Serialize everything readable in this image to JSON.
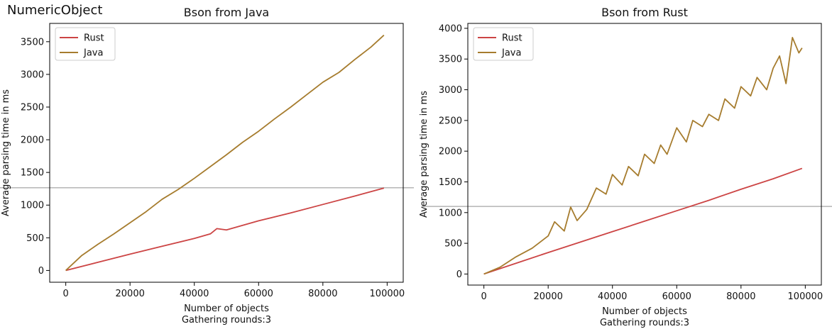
{
  "figure": {
    "suptitle": "NumericObject"
  },
  "chart_data": [
    {
      "type": "line",
      "title": "Bson from Java",
      "xlabel": "Number of objects\nGathering rounds:3",
      "ylabel": "Average parsing time in ms",
      "xlim": [
        -5000,
        105000
      ],
      "ylim": [
        -180,
        3780
      ],
      "xticks": [
        0,
        20000,
        40000,
        60000,
        80000,
        100000
      ],
      "yticks": [
        0,
        500,
        1000,
        1500,
        2000,
        2500,
        3000,
        3500
      ],
      "hline": 1265,
      "legend": "top-left",
      "series": [
        {
          "name": "Rust",
          "color": "#cc4444",
          "x": [
            0,
            10000,
            20000,
            30000,
            40000,
            45000,
            47000,
            50000,
            60000,
            70000,
            80000,
            90000,
            99000
          ],
          "y": [
            0,
            125,
            250,
            370,
            490,
            560,
            640,
            620,
            760,
            880,
            1010,
            1140,
            1260
          ]
        },
        {
          "name": "Java",
          "color": "#a67c2e",
          "x": [
            0,
            5000,
            10000,
            15000,
            20000,
            25000,
            30000,
            35000,
            40000,
            45000,
            50000,
            55000,
            60000,
            65000,
            70000,
            75000,
            80000,
            85000,
            90000,
            95000,
            99000
          ],
          "y": [
            0,
            230,
            400,
            560,
            730,
            900,
            1090,
            1240,
            1410,
            1590,
            1770,
            1960,
            2130,
            2320,
            2500,
            2690,
            2880,
            3030,
            3230,
            3420,
            3600
          ]
        }
      ]
    },
    {
      "type": "line",
      "title": "Bson from Rust",
      "xlabel": "Number of objects\nGathering rounds:3",
      "ylabel": "Average parsing time in ms",
      "xlim": [
        -5000,
        105000
      ],
      "ylim": [
        -180,
        4080
      ],
      "xticks": [
        0,
        20000,
        40000,
        60000,
        80000,
        100000
      ],
      "yticks": [
        0,
        500,
        1000,
        1500,
        2000,
        2500,
        3000,
        3500,
        4000
      ],
      "hline": 1100,
      "legend": "top-left",
      "series": [
        {
          "name": "Rust",
          "color": "#cc4444",
          "x": [
            0,
            10000,
            20000,
            30000,
            40000,
            50000,
            60000,
            70000,
            80000,
            90000,
            99000
          ],
          "y": [
            0,
            175,
            350,
            520,
            690,
            860,
            1030,
            1200,
            1380,
            1550,
            1720
          ]
        },
        {
          "name": "Java",
          "color": "#a67c2e",
          "x": [
            0,
            5000,
            10000,
            15000,
            20000,
            22000,
            25000,
            27000,
            29000,
            32000,
            35000,
            38000,
            40000,
            43000,
            45000,
            48000,
            50000,
            53000,
            55000,
            57000,
            60000,
            63000,
            65000,
            68000,
            70000,
            73000,
            75000,
            78000,
            80000,
            83000,
            85000,
            88000,
            90000,
            92000,
            94000,
            96000,
            98000,
            99000
          ],
          "y": [
            0,
            110,
            280,
            420,
            620,
            850,
            700,
            1090,
            870,
            1050,
            1400,
            1300,
            1620,
            1450,
            1750,
            1600,
            1950,
            1800,
            2100,
            1950,
            2380,
            2150,
            2500,
            2400,
            2600,
            2500,
            2850,
            2700,
            3050,
            2900,
            3200,
            3000,
            3350,
            3550,
            3100,
            3850,
            3600,
            3680
          ]
        }
      ]
    }
  ]
}
